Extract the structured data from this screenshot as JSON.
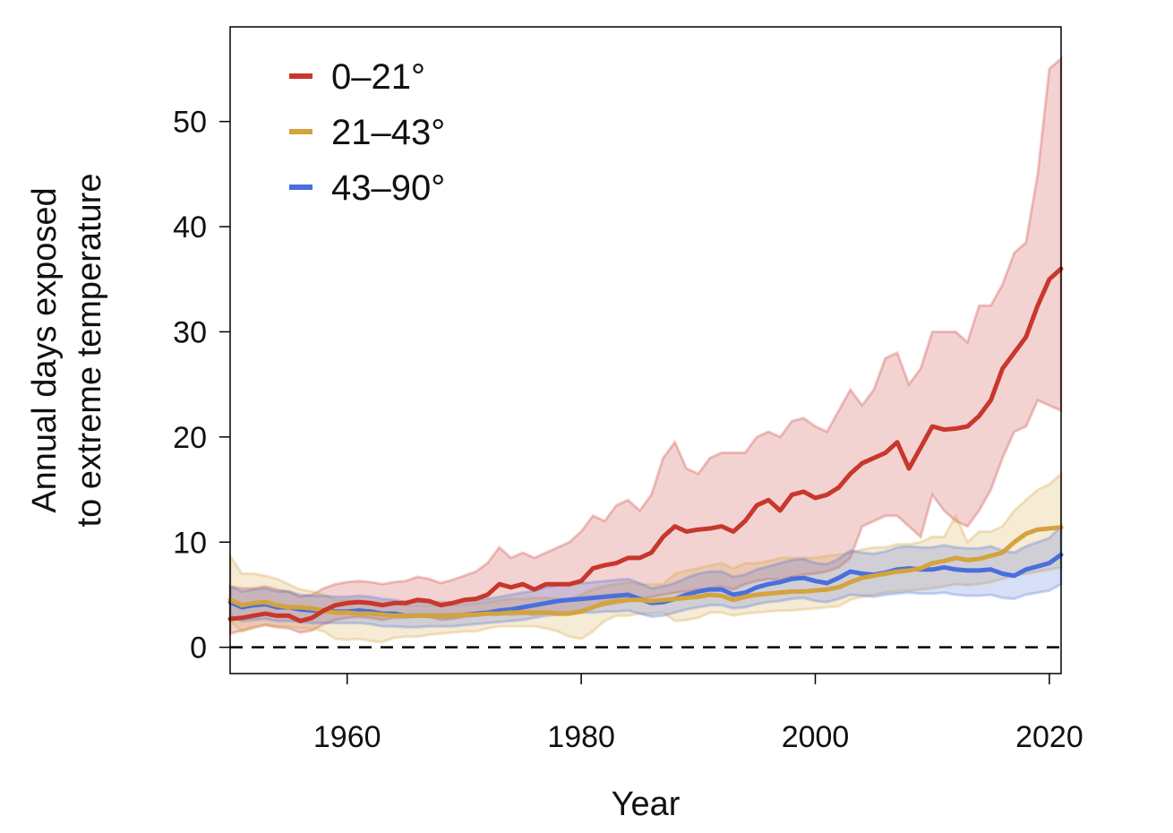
{
  "chart_data": {
    "type": "line",
    "xlabel": "Year",
    "ylabel_lines": [
      "Annual days exposed",
      "to extreme temperature"
    ],
    "xlim": [
      1950,
      2021
    ],
    "ylim": [
      -2.5,
      59
    ],
    "xticks": [
      1960,
      1980,
      2000,
      2020
    ],
    "yticks": [
      0,
      10,
      20,
      30,
      40,
      50
    ],
    "reference_line": {
      "y": 0,
      "style": "dashed",
      "color": "#000000"
    },
    "legend": {
      "placement": "top-left"
    },
    "x": [
      1950,
      1951,
      1952,
      1953,
      1954,
      1955,
      1956,
      1957,
      1958,
      1959,
      1960,
      1961,
      1962,
      1963,
      1964,
      1965,
      1966,
      1967,
      1968,
      1969,
      1970,
      1971,
      1972,
      1973,
      1974,
      1975,
      1976,
      1977,
      1978,
      1979,
      1980,
      1981,
      1982,
      1983,
      1984,
      1985,
      1986,
      1987,
      1988,
      1989,
      1990,
      1991,
      1992,
      1993,
      1994,
      1995,
      1996,
      1997,
      1998,
      1999,
      2000,
      2001,
      2002,
      2003,
      2004,
      2005,
      2006,
      2007,
      2008,
      2009,
      2010,
      2011,
      2012,
      2013,
      2014,
      2015,
      2016,
      2017,
      2018,
      2019,
      2020,
      2021
    ],
    "series": [
      {
        "name": "0–21°",
        "color": "#c8372d",
        "values": [
          2.7,
          2.8,
          3.0,
          3.2,
          3.0,
          3.0,
          2.5,
          2.8,
          3.5,
          4.0,
          4.2,
          4.3,
          4.2,
          4.0,
          4.2,
          4.2,
          4.5,
          4.4,
          4.0,
          4.2,
          4.5,
          4.6,
          5.0,
          6.0,
          5.7,
          6.0,
          5.5,
          6.0,
          6.0,
          6.0,
          6.3,
          7.5,
          7.8,
          8.0,
          8.5,
          8.5,
          9.0,
          10.5,
          11.5,
          11.0,
          11.2,
          11.3,
          11.5,
          11.0,
          12.0,
          13.5,
          14.0,
          13.0,
          14.5,
          14.8,
          14.2,
          14.5,
          15.2,
          16.5,
          17.5,
          18.0,
          18.5,
          19.5,
          17.0,
          19.0,
          21.0,
          20.7,
          20.8,
          21.0,
          22.0,
          23.5,
          26.5,
          28.0,
          29.5,
          32.5,
          35.0,
          36.0
        ],
        "lower": [
          1.3,
          1.6,
          1.9,
          2.1,
          1.9,
          1.8,
          1.4,
          1.6,
          2.2,
          2.6,
          2.8,
          2.9,
          2.8,
          2.6,
          2.8,
          2.8,
          3.0,
          2.9,
          2.6,
          2.7,
          2.9,
          3.0,
          3.2,
          3.3,
          3.1,
          3.2,
          3.1,
          3.3,
          3.3,
          3.3,
          3.5,
          3.8,
          4.0,
          4.2,
          4.4,
          4.5,
          4.8,
          5.0,
          5.2,
          5.3,
          5.5,
          5.6,
          5.8,
          5.5,
          6.0,
          6.3,
          6.5,
          6.4,
          6.7,
          6.9,
          7.0,
          7.2,
          7.6,
          8.5,
          11.5,
          12.0,
          12.5,
          12.5,
          11.5,
          10.5,
          14.5,
          13.0,
          12.0,
          11.5,
          13.0,
          15.0,
          18.0,
          20.5,
          21.0,
          23.5,
          23.0,
          22.5
        ],
        "upper": [
          5.8,
          5.6,
          5.6,
          5.8,
          5.5,
          5.3,
          4.8,
          5.0,
          5.6,
          6.0,
          6.2,
          6.3,
          6.2,
          6.0,
          6.2,
          6.3,
          6.7,
          6.5,
          6.1,
          6.4,
          6.8,
          7.2,
          8.0,
          9.5,
          8.5,
          9.0,
          8.5,
          9.0,
          9.5,
          10.0,
          11.0,
          12.5,
          12.0,
          13.5,
          14.0,
          13.0,
          14.5,
          18.0,
          19.5,
          17.0,
          16.5,
          18.0,
          18.5,
          18.5,
          18.5,
          20.0,
          20.5,
          20.0,
          21.5,
          21.8,
          21.0,
          20.5,
          22.5,
          24.5,
          23.0,
          24.5,
          27.5,
          28.0,
          25.0,
          26.5,
          30.0,
          30.0,
          30.0,
          29.0,
          32.5,
          32.5,
          34.5,
          37.5,
          38.5,
          45.0,
          55.0,
          56.0
        ]
      },
      {
        "name": "21–43°",
        "color": "#d4a33d",
        "values": [
          4.5,
          4.0,
          4.2,
          4.3,
          4.0,
          3.8,
          3.8,
          3.7,
          3.5,
          3.3,
          3.3,
          3.2,
          3.2,
          3.1,
          3.0,
          3.0,
          3.0,
          3.0,
          3.0,
          3.0,
          3.1,
          3.1,
          3.2,
          3.2,
          3.3,
          3.3,
          3.3,
          3.3,
          3.2,
          3.2,
          3.4,
          3.8,
          4.2,
          4.4,
          4.5,
          4.5,
          4.4,
          4.5,
          4.6,
          4.7,
          4.8,
          5.0,
          4.9,
          4.5,
          4.8,
          5.0,
          5.1,
          5.2,
          5.3,
          5.3,
          5.4,
          5.5,
          5.7,
          6.2,
          6.6,
          6.8,
          7.0,
          7.2,
          7.3,
          7.5,
          8.0,
          8.2,
          8.5,
          8.3,
          8.4,
          8.7,
          9.0,
          10.0,
          10.8,
          11.2,
          11.3,
          11.4
        ],
        "lower": [
          2.5,
          1.5,
          1.8,
          2.2,
          2.0,
          2.0,
          1.8,
          1.8,
          1.5,
          0.8,
          0.7,
          0.8,
          0.6,
          0.5,
          0.9,
          1.0,
          1.0,
          1.2,
          1.3,
          1.4,
          1.5,
          1.5,
          1.8,
          2.0,
          2.0,
          2.0,
          2.0,
          1.8,
          1.5,
          1.0,
          0.8,
          1.5,
          2.5,
          3.0,
          3.0,
          3.2,
          3.2,
          3.3,
          2.5,
          2.6,
          2.8,
          3.3,
          3.3,
          3.0,
          3.2,
          3.3,
          3.4,
          3.5,
          3.5,
          3.6,
          3.7,
          3.8,
          3.9,
          4.5,
          4.8,
          5.0,
          5.2,
          5.3,
          5.4,
          5.5,
          5.6,
          5.8,
          6.0,
          5.9,
          6.0,
          6.2,
          6.5,
          6.8,
          7.0,
          7.2,
          7.4,
          7.6
        ],
        "upper": [
          8.7,
          7.0,
          7.0,
          6.8,
          6.5,
          6.0,
          5.5,
          5.3,
          5.0,
          4.5,
          4.5,
          4.5,
          4.4,
          4.3,
          4.2,
          4.0,
          4.0,
          4.0,
          4.0,
          4.0,
          4.1,
          4.2,
          4.3,
          4.5,
          4.6,
          4.6,
          4.7,
          4.7,
          4.6,
          4.6,
          5.0,
          5.5,
          5.8,
          6.0,
          6.2,
          6.0,
          6.0,
          6.0,
          7.0,
          7.3,
          7.5,
          7.8,
          8.0,
          7.5,
          8.0,
          8.0,
          8.2,
          8.5,
          8.5,
          8.5,
          8.5,
          8.7,
          8.8,
          9.0,
          9.3,
          9.5,
          9.5,
          9.8,
          9.8,
          10.0,
          10.5,
          10.5,
          12.5,
          10.0,
          11.0,
          11.0,
          11.5,
          13.0,
          14.0,
          15.0,
          15.5,
          16.5
        ]
      },
      {
        "name": "43–90°",
        "color": "#4a6fdc",
        "values": [
          4.3,
          3.8,
          4.0,
          4.1,
          3.8,
          3.8,
          3.6,
          3.5,
          3.5,
          3.4,
          3.4,
          3.5,
          3.4,
          3.2,
          3.2,
          3.0,
          3.0,
          3.0,
          3.0,
          3.0,
          3.1,
          3.2,
          3.3,
          3.5,
          3.6,
          3.8,
          4.0,
          4.2,
          4.4,
          4.5,
          4.6,
          4.7,
          4.8,
          4.9,
          5.0,
          4.6,
          4.2,
          4.3,
          4.6,
          5.0,
          5.3,
          5.5,
          5.5,
          5.0,
          5.2,
          5.7,
          6.0,
          6.2,
          6.5,
          6.6,
          6.3,
          6.1,
          6.6,
          7.2,
          7.0,
          6.9,
          7.1,
          7.4,
          7.5,
          7.4,
          7.4,
          7.6,
          7.4,
          7.3,
          7.3,
          7.4,
          7.0,
          6.8,
          7.4,
          7.7,
          8.0,
          8.8
        ],
        "lower": [
          3.0,
          2.5,
          2.6,
          2.7,
          2.5,
          2.5,
          2.4,
          2.3,
          2.3,
          2.3,
          2.3,
          2.3,
          2.2,
          2.0,
          2.0,
          1.9,
          1.9,
          2.0,
          2.0,
          2.0,
          2.1,
          2.2,
          2.3,
          2.4,
          2.5,
          2.6,
          2.8,
          3.0,
          3.1,
          3.2,
          3.3,
          3.3,
          3.4,
          3.4,
          3.5,
          3.2,
          2.9,
          3.0,
          3.3,
          3.6,
          3.8,
          4.0,
          4.0,
          3.7,
          3.8,
          4.1,
          4.3,
          4.4,
          4.6,
          4.7,
          4.4,
          4.3,
          4.6,
          5.0,
          4.9,
          4.8,
          5.0,
          5.1,
          5.2,
          5.1,
          5.1,
          5.2,
          5.0,
          4.9,
          4.9,
          5.0,
          4.7,
          4.6,
          5.0,
          5.2,
          5.4,
          6.0
        ],
        "upper": [
          5.8,
          5.3,
          5.5,
          5.6,
          5.3,
          5.3,
          5.0,
          4.9,
          4.9,
          4.8,
          4.8,
          4.9,
          4.8,
          4.6,
          4.5,
          4.3,
          4.3,
          4.3,
          4.3,
          4.3,
          4.4,
          4.5,
          4.6,
          4.8,
          5.0,
          5.2,
          5.4,
          5.7,
          5.9,
          6.0,
          6.1,
          6.2,
          6.3,
          6.4,
          6.5,
          6.1,
          5.6,
          5.8,
          6.1,
          6.6,
          7.0,
          7.2,
          7.2,
          6.7,
          6.9,
          7.4,
          7.7,
          8.0,
          8.3,
          8.4,
          8.0,
          7.9,
          8.4,
          9.2,
          9.0,
          8.9,
          9.1,
          9.5,
          9.6,
          9.5,
          9.5,
          9.7,
          9.5,
          9.4,
          9.4,
          9.6,
          9.2,
          9.0,
          9.6,
          10.0,
          10.4,
          11.5
        ]
      }
    ]
  }
}
